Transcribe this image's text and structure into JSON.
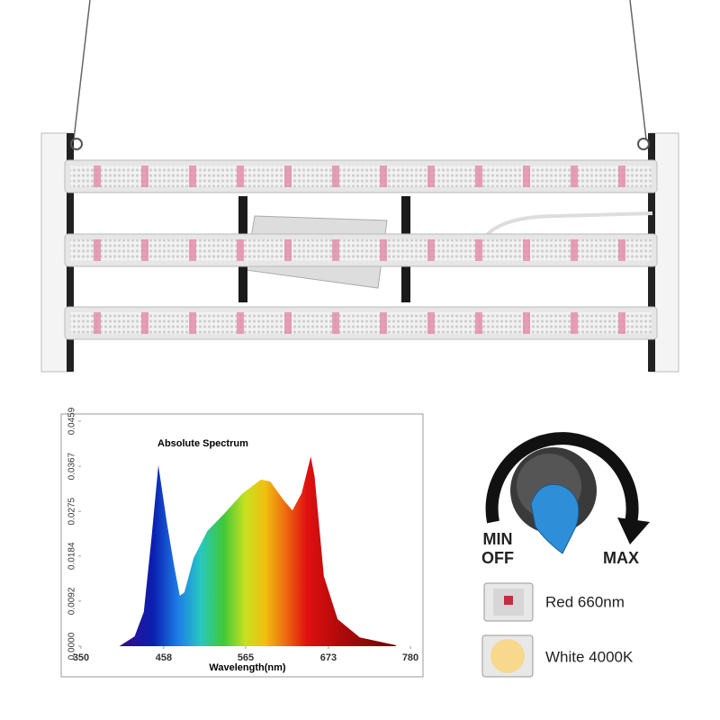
{
  "chart_data": {
    "type": "area",
    "title": "Absolute Spectrum",
    "x_label": "Wavelength(nm)",
    "x": [
      400,
      420,
      432,
      442,
      451,
      462,
      472,
      479,
      485,
      497,
      515,
      538,
      561,
      585,
      597,
      614,
      626,
      638,
      650,
      655,
      667,
      685,
      714,
      761
    ],
    "values": [
      0,
      0.002,
      0.007,
      0.022,
      0.0369,
      0.0253,
      0.016,
      0.0103,
      0.011,
      0.018,
      0.0235,
      0.0272,
      0.0312,
      0.034,
      0.0336,
      0.0299,
      0.0277,
      0.0312,
      0.0387,
      0.0345,
      0.0143,
      0.0055,
      0.0018,
      0.0002
    ],
    "xlim": [
      350,
      780
    ],
    "xticks": [
      350,
      458,
      565,
      673,
      780
    ],
    "ylim": [
      0,
      0.0459
    ],
    "yticks": [
      {
        "value": 0,
        "label": "0.0000"
      },
      0.0092,
      0.0184,
      0.0275,
      0.0367,
      0.0459
    ]
  },
  "labels": {
    "min": "MIN",
    "off": "OFF",
    "max": "MAX",
    "red": "Red 660nm",
    "white": "White 4000K"
  }
}
